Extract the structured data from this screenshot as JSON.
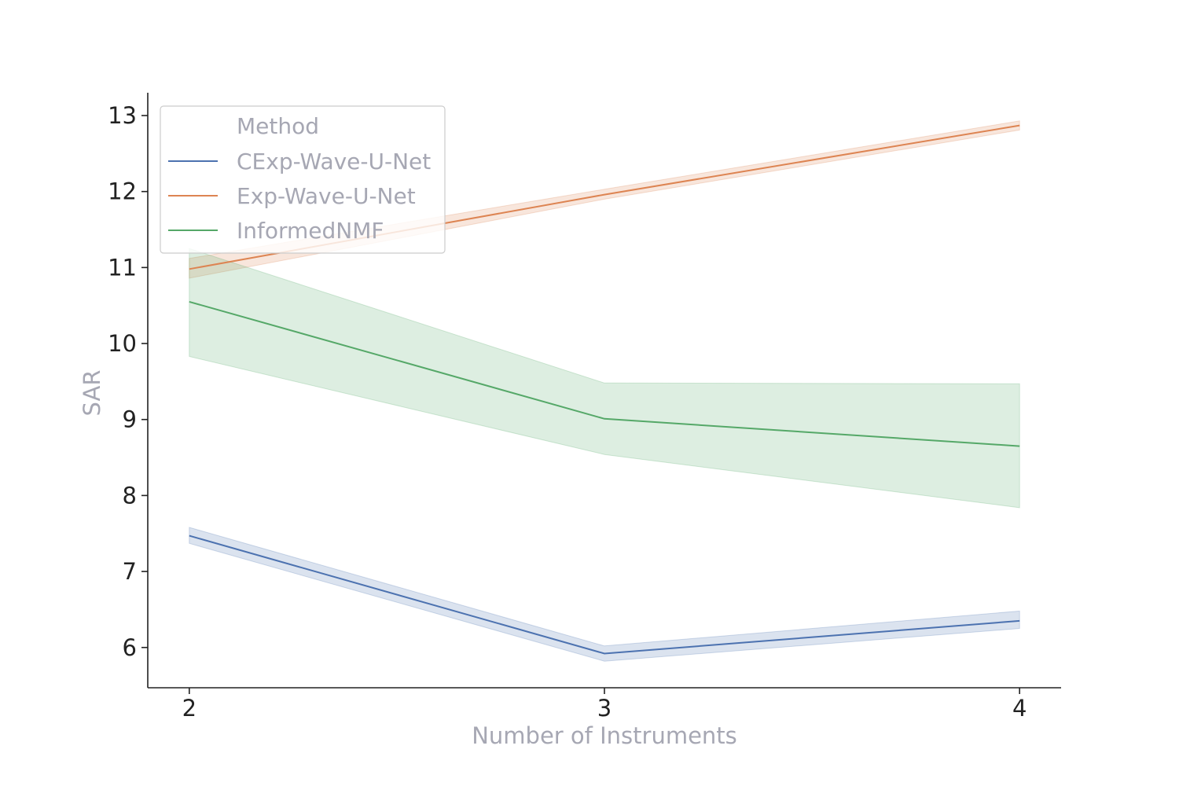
{
  "chart_data": {
    "type": "line",
    "xlabel": "Number of Instruments",
    "ylabel": "SAR",
    "x": [
      2,
      3,
      4
    ],
    "xticks": [
      "2",
      "3",
      "4"
    ],
    "yticks": [
      "6",
      "7",
      "8",
      "9",
      "10",
      "11",
      "12",
      "13"
    ],
    "xlim": [
      1.9,
      4.1
    ],
    "ylim": [
      5.47,
      13.3
    ],
    "grid": false,
    "legend": {
      "title": "Method",
      "placement": "top-left"
    },
    "series": [
      {
        "name": "CExp-Wave-U-Net",
        "color": "#4c72b0",
        "values": [
          7.47,
          5.92,
          6.35
        ],
        "ci_low": [
          7.37,
          5.82,
          6.25
        ],
        "ci_high": [
          7.58,
          6.02,
          6.48
        ]
      },
      {
        "name": "Exp-Wave-U-Net",
        "color": "#dd8452",
        "values": [
          10.98,
          11.96,
          12.87
        ],
        "ci_low": [
          10.86,
          11.9,
          12.81
        ],
        "ci_high": [
          11.12,
          12.03,
          12.93
        ]
      },
      {
        "name": "InformedNMF",
        "color": "#55a868",
        "values": [
          10.55,
          9.01,
          8.65
        ],
        "ci_low": [
          9.83,
          8.54,
          7.84
        ],
        "ci_high": [
          11.25,
          9.48,
          9.47
        ]
      }
    ]
  }
}
